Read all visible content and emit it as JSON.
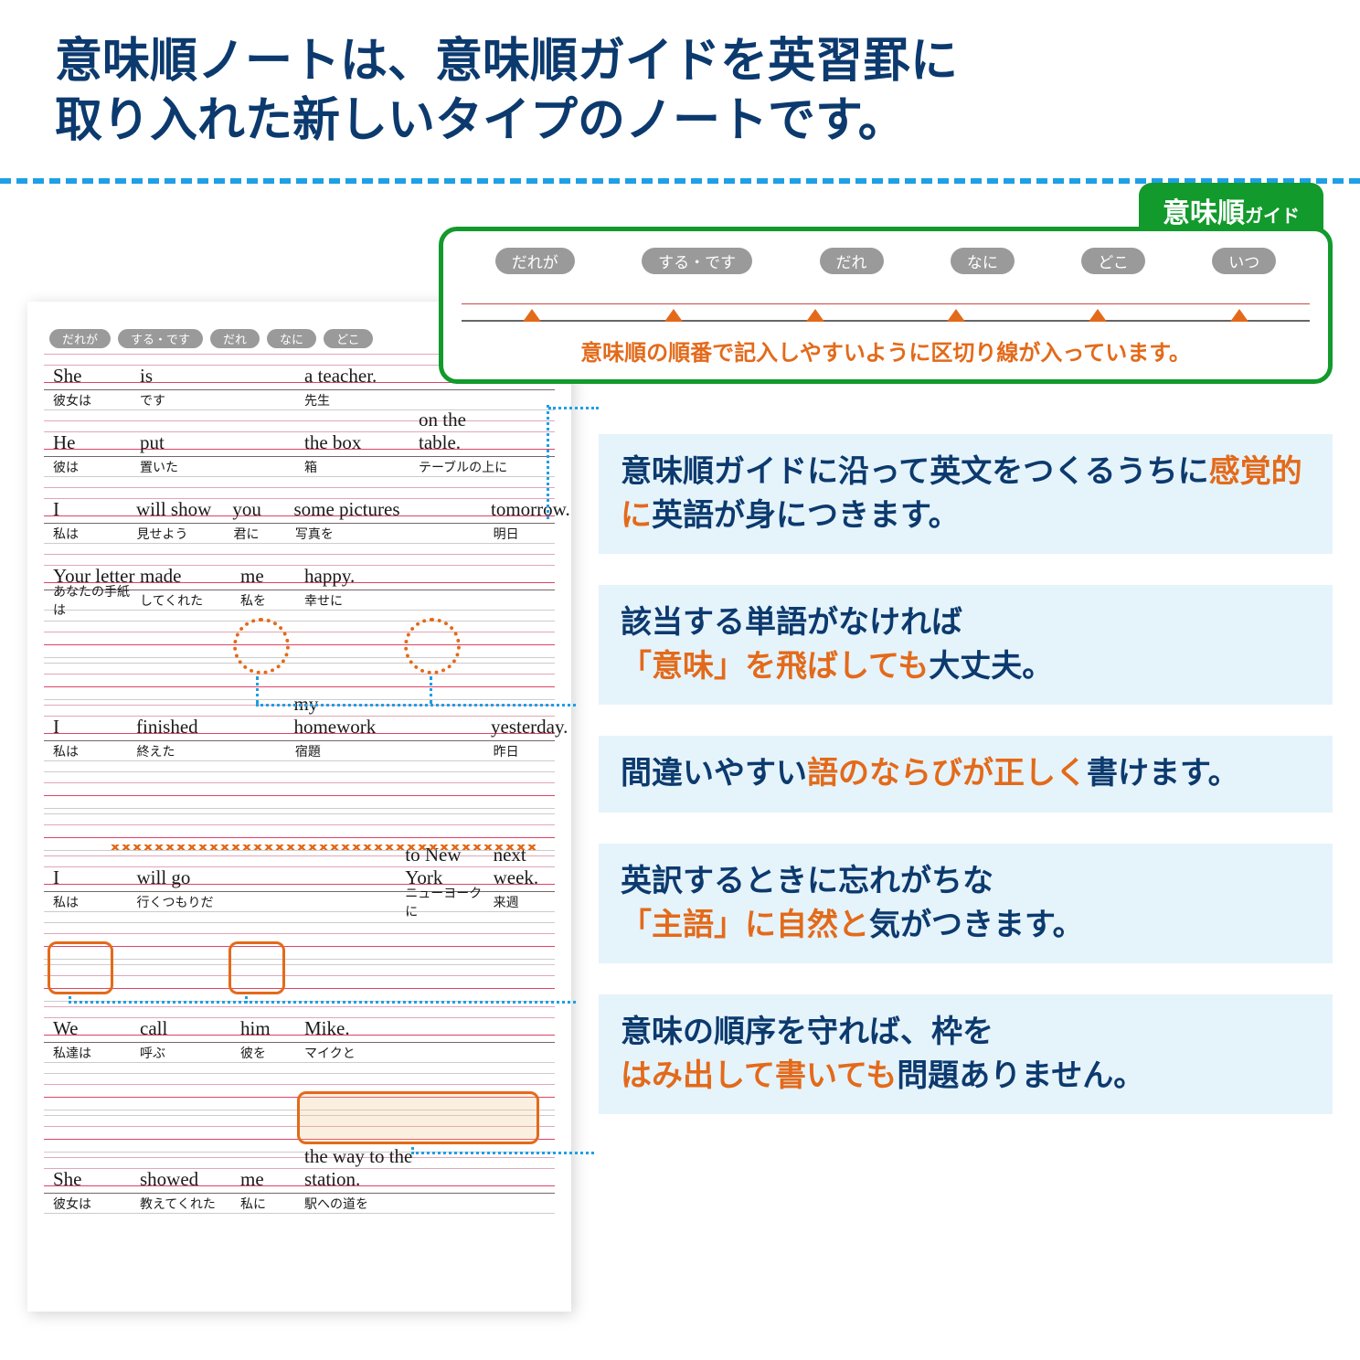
{
  "headline": {
    "line1": "意味順ノートは、意味順ガイドを英習罫に",
    "line2": "取り入れた新しいタイプのノートです。"
  },
  "guide": {
    "tag": "意味順",
    "tag_small": "ガイド",
    "pills": [
      "だれが",
      "する・です",
      "だれ",
      "なに",
      "どこ",
      "いつ"
    ],
    "note": "意味順の順番で記入しやすいように区切り線が入っています。"
  },
  "notebook": {
    "pills": [
      "だれが",
      "する・です",
      "だれ",
      "なに",
      "どこ"
    ],
    "sentences": [
      {
        "en": [
          "She",
          "is",
          "",
          "a teacher."
        ],
        "jp": [
          "彼女は",
          "です",
          "",
          "先生"
        ]
      },
      {
        "en": [
          "He",
          "put",
          "",
          "the box",
          "on the table."
        ],
        "jp": [
          "彼は",
          "置いた",
          "",
          "箱",
          "テーブルの上に"
        ]
      },
      {
        "en": [
          "I",
          "will show",
          "you",
          "some pictures",
          "",
          "tomorrow."
        ],
        "jp": [
          "私は",
          "見せよう",
          "君に",
          "写真を",
          "",
          "明日"
        ]
      },
      {
        "en": [
          "Your letter",
          "made",
          "me",
          "happy."
        ],
        "jp": [
          "あなたの手紙は",
          "してくれた",
          "私を",
          "幸せに"
        ]
      },
      {
        "en": [
          "I",
          "finished",
          "",
          "my homework",
          "",
          "yesterday."
        ],
        "jp": [
          "私は",
          "終えた",
          "",
          "宿題",
          "",
          "昨日"
        ]
      },
      {
        "en": [
          "I",
          "will go",
          "",
          "",
          "to New York",
          "next week."
        ],
        "jp": [
          "私は",
          "行くつもりだ",
          "",
          "",
          "ニューヨークに",
          "来週"
        ]
      },
      {
        "en": [
          "We",
          "call",
          "him",
          "Mike."
        ],
        "jp": [
          "私達は",
          "呼ぶ",
          "彼を",
          "マイクと"
        ]
      },
      {
        "en": [
          "She",
          "showed",
          "me",
          "the way to the station."
        ],
        "jp": [
          "彼女は",
          "教えてくれた",
          "私に",
          "駅への道を"
        ]
      }
    ]
  },
  "cards": [
    {
      "pre": "意味順ガイドに沿って英文をつくるうちに",
      "hl": "感覚的に",
      "post": "英語が身につきます。"
    },
    {
      "pre": "該当する単語がなければ",
      "hl": "「意味」を飛ばしても",
      "post": "大丈夫。"
    },
    {
      "pre": "間違いやすい",
      "hl": "語のならびが正しく",
      "post": "書けます。"
    },
    {
      "pre": "英訳するときに忘れがちな",
      "hl": "「主語」に自然と",
      "post": "気がつきます。"
    },
    {
      "pre": "意味の順序を守れば、枠を",
      "hl": "はみ出して書いても",
      "post": "問題ありません。"
    }
  ],
  "colors": {
    "navy": "#0c3a6e",
    "orange": "#e36a1a",
    "blue": "#1e9fe6",
    "green": "#129a2c",
    "card_bg": "#e5f3fb",
    "pill": "#9a9a9a"
  }
}
